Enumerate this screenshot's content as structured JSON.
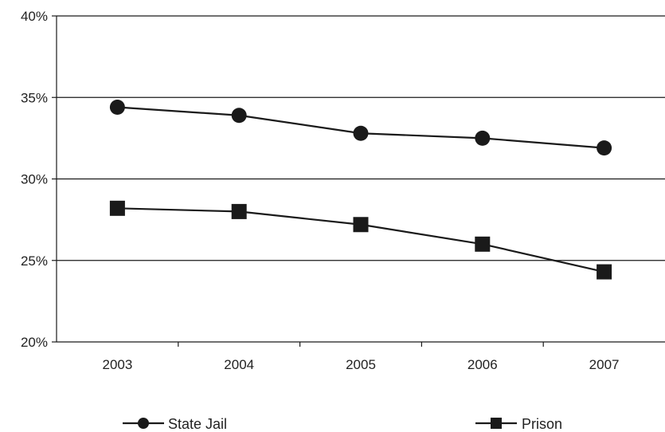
{
  "chart_data": {
    "type": "line",
    "categories": [
      "2003",
      "2004",
      "2005",
      "2006",
      "2007"
    ],
    "y_tick_labels": [
      "20%",
      "25%",
      "30%",
      "35%",
      "40%"
    ],
    "y_ticks": [
      20,
      25,
      30,
      35,
      40
    ],
    "ylim": [
      20,
      40
    ],
    "grid": "horizontal",
    "legend_position": "bottom",
    "series": [
      {
        "name": "State Jail",
        "marker": "circle",
        "values": [
          34.4,
          33.9,
          32.8,
          32.5,
          31.9
        ]
      },
      {
        "name": "Prison",
        "marker": "square",
        "values": [
          28.2,
          28.0,
          27.2,
          26.0,
          24.3
        ]
      }
    ],
    "colors": {
      "line": "#1a1a1a",
      "grid": "#1a1a1a",
      "text": "#222222"
    }
  }
}
